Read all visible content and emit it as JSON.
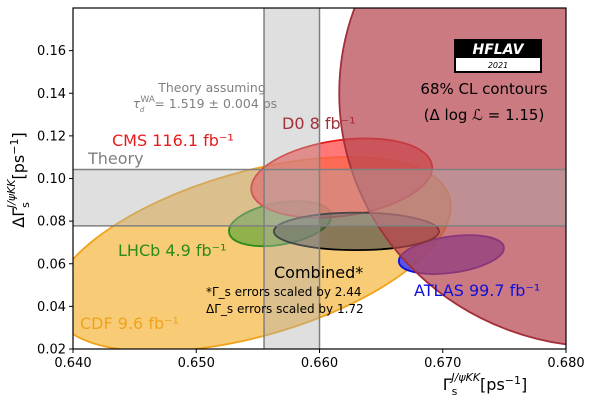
{
  "chart_data": {
    "type": "scatter",
    "title": "",
    "xlabel": "Γ_s^{J/ψKK} [ps⁻¹]",
    "ylabel": "ΔΓ_s^{J/ψKK} [ps⁻¹]",
    "xlim": [
      0.64,
      0.68
    ],
    "ylim": [
      0.02,
      0.18
    ],
    "x_ticks": [
      "0.640",
      "0.650",
      "0.660",
      "0.670",
      "0.680"
    ],
    "x_tick_values": [
      0.64,
      0.65,
      0.66,
      0.67,
      0.68
    ],
    "y_ticks": [
      "0.02",
      "0.04",
      "0.06",
      "0.08",
      "0.10",
      "0.12",
      "0.14",
      "0.16"
    ],
    "y_tick_values": [
      0.02,
      0.04,
      0.06,
      0.08,
      0.1,
      0.12,
      0.14,
      0.16
    ],
    "grid": false,
    "theory_bands": {
      "gamma_range": [
        0.6555,
        0.66
      ],
      "delta_gamma_range": [
        0.0778,
        0.1042
      ],
      "band_label": "Theory",
      "assumption_line1": "Theory assuming",
      "assumption_line2": "τ_d^{WA} = 1.519 ± 0.004 ps"
    },
    "contours": [
      {
        "name": "CDF 9.6 fb⁻¹",
        "center": [
          0.6545,
          0.0645
        ],
        "semi_axes": [
          0.0167,
          0.0385
        ],
        "angle_deg": -16,
        "fill": "#f5b942",
        "edge": "#f0a31a",
        "fill_opacity": 0.72
      },
      {
        "name": "LHCb 4.9 fb⁻¹",
        "center": [
          0.6568,
          0.0788
        ],
        "semi_axes": [
          0.0042,
          0.0098
        ],
        "angle_deg": -10,
        "fill": "#3d9a2a",
        "edge": "#2a8a1a",
        "fill_opacity": 0.55
      },
      {
        "name": "CMS 116.1 fb⁻¹",
        "center": [
          0.6618,
          0.1002
        ],
        "semi_axes": [
          0.0074,
          0.0178
        ],
        "angle_deg": -8,
        "fill": "#ff4a4a",
        "edge": "#e81c1c",
        "fill_opacity": 0.75
      },
      {
        "name": "ATLAS 99.7 fb⁻¹",
        "center": [
          0.6707,
          0.0643
        ],
        "semi_axes": [
          0.0043,
          0.0085
        ],
        "angle_deg": -8,
        "fill": "#3535ff",
        "edge": "#1010dd",
        "fill_opacity": 0.8
      },
      {
        "name": "Combined*",
        "center": [
          0.663,
          0.0752
        ],
        "semi_axes": [
          0.0067,
          0.0088
        ],
        "angle_deg": 0,
        "fill": "#444444",
        "edge": "#000000",
        "fill_opacity": 0.62
      },
      {
        "name": "D0 8 fb⁻¹",
        "center": [
          0.683,
          0.14
        ],
        "semi_axes": [
          0.0214,
          0.119
        ],
        "angle_deg": 0,
        "fill": "#b94650",
        "edge": "#a32f3a",
        "fill_opacity": 0.72
      }
    ],
    "annotations": {
      "contour_info_line1": "68% CL contours",
      "contour_info_line2": "(Δ log ℒ = 1.15)",
      "scaling_line1": "*Γ_s errors scaled by 2.44",
      "scaling_line2": "ΔΓ_s errors scaled by 1.72"
    },
    "legend": "none"
  },
  "logo": {
    "name": "HFLAV",
    "year": "2021"
  },
  "colors": {
    "cdf": "#f0a31a",
    "lhcb": "#2a8a1a",
    "cms": "#e81c1c",
    "atlas": "#1010dd",
    "combined": "#000000",
    "d0": "#a32f3a",
    "theory": "#888888"
  }
}
